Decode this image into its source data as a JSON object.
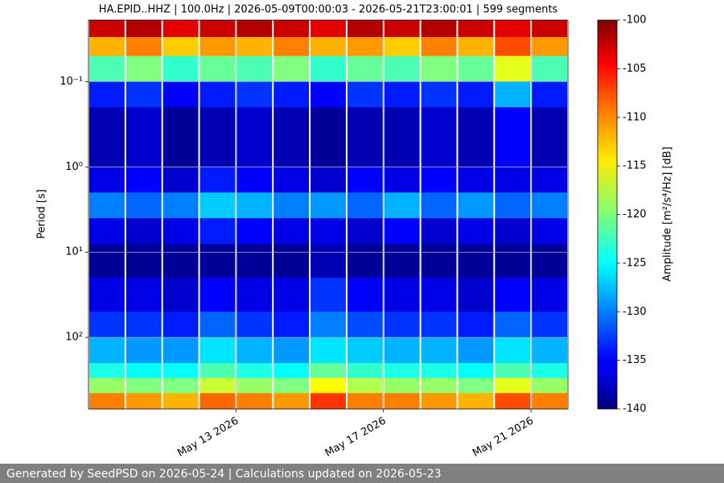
{
  "chart_data": {
    "type": "heatmap",
    "title": "HA.EPID..HHZ | 100.0Hz | 2026-05-09T00:00:03 - 2026-05-21T23:00:01 | 599 segments",
    "ylabel": "Period [s]",
    "x": [
      "2026-05-09",
      "2026-05-10",
      "2026-05-11",
      "2026-05-12",
      "2026-05-13",
      "2026-05-14",
      "2026-05-15",
      "2026-05-16",
      "2026-05-17",
      "2026-05-18",
      "2026-05-19",
      "2026-05-20",
      "2026-05-21"
    ],
    "y_bins": [
      0.019,
      0.03,
      0.05,
      0.1,
      0.2,
      1,
      2,
      4,
      8,
      20,
      50,
      100,
      200,
      300,
      450,
      690
    ],
    "values": [
      [
        -103,
        -102,
        -104,
        -103,
        -102,
        -103,
        -104,
        -102,
        -103,
        -102,
        -103,
        -104,
        -103
      ],
      [
        -112,
        -110,
        -113,
        -111,
        -112,
        -110,
        -112,
        -111,
        -113,
        -110,
        -112,
        -108,
        -111
      ],
      [
        -122,
        -120,
        -123,
        -121,
        -122,
        -120,
        -123,
        -121,
        -122,
        -120,
        -121,
        -116,
        -122
      ],
      [
        -134,
        -133,
        -135,
        -134,
        -133,
        -134,
        -135,
        -133,
        -134,
        -133,
        -134,
        -128,
        -134
      ],
      [
        -138,
        -137,
        -139,
        -138,
        -137,
        -138,
        -139,
        -138,
        -138,
        -137,
        -138,
        -135,
        -138
      ],
      [
        -136,
        -135,
        -137,
        -134,
        -135,
        -136,
        -137,
        -135,
        -136,
        -135,
        -136,
        -136,
        -136
      ],
      [
        -130,
        -131,
        -130,
        -127,
        -128,
        -130,
        -129,
        -131,
        -128,
        -131,
        -129,
        -131,
        -130
      ],
      [
        -136,
        -137,
        -136,
        -134,
        -135,
        -136,
        -136,
        -137,
        -135,
        -137,
        -136,
        -137,
        -136
      ],
      [
        -139,
        -139,
        -139,
        -139,
        -139,
        -139,
        -138,
        -139,
        -139,
        -139,
        -139,
        -139,
        -139
      ],
      [
        -136,
        -136,
        -137,
        -135,
        -136,
        -136,
        -133,
        -135,
        -136,
        -136,
        -137,
        -135,
        -136
      ],
      [
        -133,
        -133,
        -134,
        -131,
        -133,
        -134,
        -130,
        -132,
        -133,
        -133,
        -134,
        -131,
        -133
      ],
      [
        -128,
        -129,
        -129,
        -126,
        -128,
        -129,
        -126,
        -127,
        -128,
        -128,
        -129,
        -126,
        -128
      ],
      [
        -124,
        -125,
        -125,
        -122,
        -124,
        -125,
        -121,
        -123,
        -124,
        -124,
        -125,
        -122,
        -124
      ],
      [
        -119,
        -120,
        -120,
        -117,
        -119,
        -120,
        -115,
        -118,
        -119,
        -119,
        -120,
        -116,
        -119
      ],
      [
        -110,
        -111,
        -112,
        -109,
        -110,
        -111,
        -107,
        -110,
        -110,
        -111,
        -112,
        -108,
        -110
      ]
    ],
    "xlim": [
      "2026-05-09",
      "2026-05-22"
    ],
    "xticks": [
      {
        "value": "2026-05-13",
        "label": "May 13 2026"
      },
      {
        "value": "2026-05-17",
        "label": "May 17 2026"
      },
      {
        "value": "2026-05-21",
        "label": "May 21 2026"
      }
    ],
    "ylim": [
      0.019,
      690
    ],
    "yscale": "log",
    "y_inverted": true,
    "yticks": [
      {
        "value": 0.1,
        "label": "10⁻¹"
      },
      {
        "value": 1,
        "label": "10⁰"
      },
      {
        "value": 10,
        "label": "10¹"
      },
      {
        "value": 100,
        "label": "10²"
      }
    ],
    "grid": true,
    "colormap": "jet",
    "colorbar": {
      "label": "Amplitude [m²/s⁴/Hz] [dB]",
      "lim": [
        -140,
        -100
      ],
      "ticks": [
        -140,
        -135,
        -130,
        -125,
        -120,
        -115,
        -110,
        -105,
        -100
      ]
    }
  },
  "footer": "Generated by SeedPSD on 2026-05-24 | Calculations updated on 2026-05-23"
}
